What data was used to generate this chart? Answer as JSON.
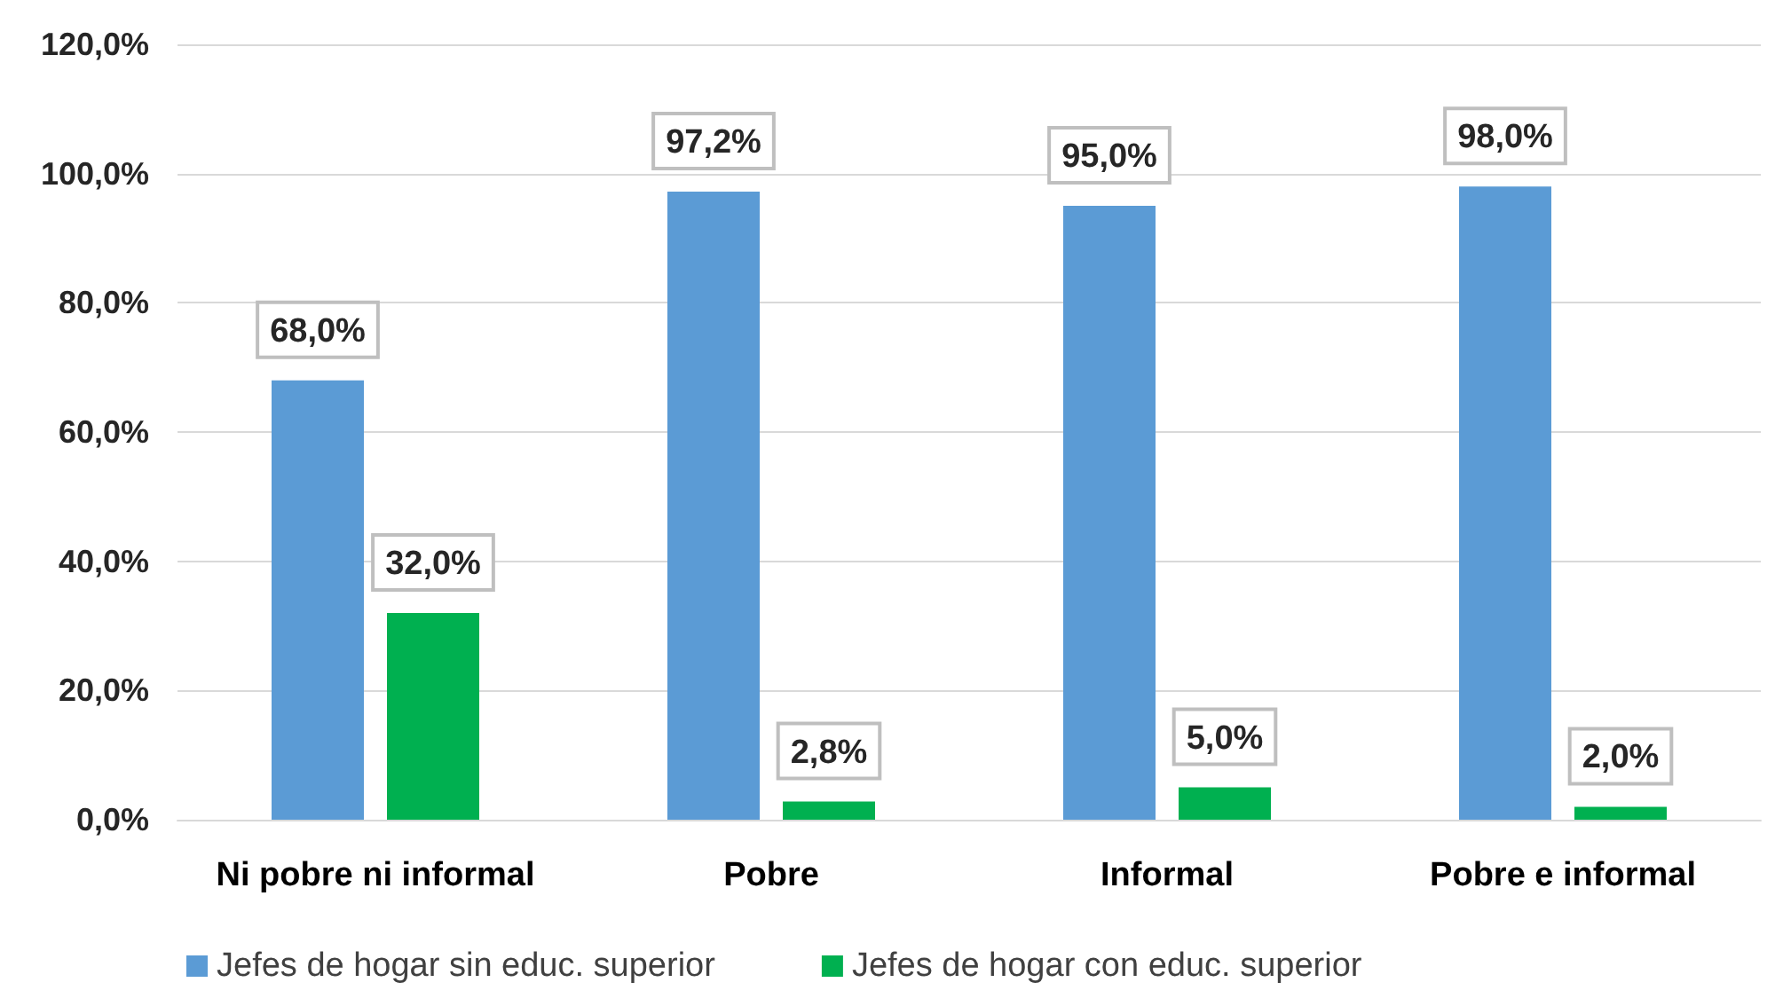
{
  "chart_data": {
    "type": "bar",
    "categories": [
      "Ni pobre ni informal",
      "Pobre",
      "Informal",
      "Pobre e informal"
    ],
    "series": [
      {
        "name": "Jefes de hogar sin educ. superior",
        "color": "#5b9bd5",
        "values": [
          68.0,
          97.2,
          95.0,
          98.0
        ],
        "value_labels": [
          "68,0%",
          "97,2%",
          "95,0%",
          "98,0%"
        ]
      },
      {
        "name": "Jefes de hogar con educ. superior",
        "color": "#00b050",
        "values": [
          32.0,
          2.8,
          5.0,
          2.0
        ],
        "value_labels": [
          "32,0%",
          "2,8%",
          "5,0%",
          "2,0%"
        ]
      }
    ],
    "ylim": [
      0,
      120
    ],
    "yticks": [
      {
        "value": 0,
        "label": "0,0%"
      },
      {
        "value": 20,
        "label": "20,0%"
      },
      {
        "value": 40,
        "label": "40,0%"
      },
      {
        "value": 60,
        "label": "60,0%"
      },
      {
        "value": 80,
        "label": "80,0%"
      },
      {
        "value": 100,
        "label": "100,0%"
      },
      {
        "value": 120,
        "label": "120,0%"
      }
    ],
    "grid": "y",
    "legend": "bottom"
  }
}
